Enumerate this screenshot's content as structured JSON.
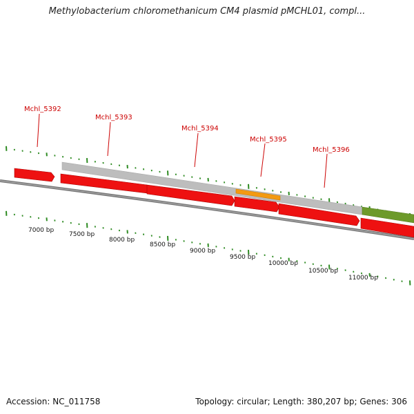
{
  "title": "Methylobacterium chloromethanicum CM4 plasmid pMCHL01, compl...",
  "footer": {
    "accession": "Accession: NC_011758",
    "summary": "Topology: circular; Length: 380,207 bp; Genes: 306"
  },
  "colors": {
    "gene": "#ee1111",
    "gene_label": "#cc0000",
    "tick": "#2e8b22",
    "backbone": "#777777",
    "gray_feature": "#bdbdbd",
    "orange_feature": "#f39a12",
    "green_feature": "#6d9a2a"
  },
  "gene_labels": [
    "Mchl_5392",
    "Mchl_5393",
    "Mchl_5394",
    "Mchl_5395",
    "Mchl_5396"
  ],
  "bp_labels": [
    "7000 bp",
    "7500 bp",
    "8000 bp",
    "8500 bp",
    "9000 bp",
    "9500 bp",
    "10000 bp",
    "10500 bp",
    "11000 bp"
  ]
}
